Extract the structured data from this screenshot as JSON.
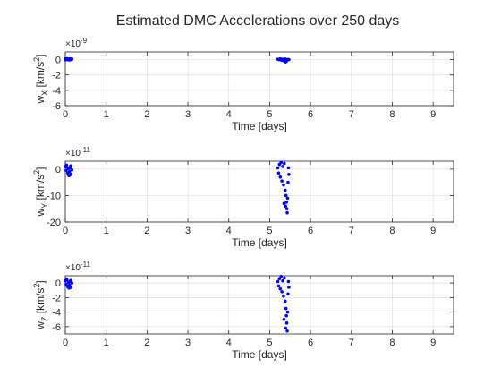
{
  "figure": {
    "title": "Estimated DMC Accelerations over 250 days"
  },
  "chart_data": [
    {
      "type": "scatter",
      "xlabel": "Time [days]",
      "ylabel_base": "w",
      "ylabel_sub": "X",
      "ylabel_unit": " [km/s",
      "ylabel_sup": "2",
      "ylabel_close": "]",
      "exponent": "×10",
      "exponent_power": "-9",
      "xlim": [
        0,
        9.5
      ],
      "ylim": [
        -6,
        1
      ],
      "xticks": [
        0,
        1,
        2,
        3,
        4,
        5,
        6,
        7,
        8,
        9
      ],
      "xtick_labels": [
        "0",
        "1",
        "2",
        "3",
        "4",
        "5",
        "6",
        "7",
        "8",
        "9"
      ],
      "yticks": [
        -6,
        -4,
        -2,
        0
      ],
      "ytick_labels": [
        "-6",
        "-4",
        "-2",
        "0"
      ],
      "grid": true,
      "color": "#0000ff",
      "points": [
        [
          0.0,
          0.1
        ],
        [
          0.02,
          0.05
        ],
        [
          0.04,
          0.12
        ],
        [
          0.06,
          0.0
        ],
        [
          0.08,
          0.08
        ],
        [
          0.1,
          -0.05
        ],
        [
          0.12,
          0.1
        ],
        [
          0.14,
          0.02
        ],
        [
          0.16,
          0.06
        ],
        [
          0.01,
          -0.02
        ],
        [
          5.2,
          0.05
        ],
        [
          5.23,
          0.0
        ],
        [
          5.26,
          0.1
        ],
        [
          5.29,
          -0.08
        ],
        [
          5.32,
          0.05
        ],
        [
          5.35,
          -0.15
        ],
        [
          5.38,
          0.08
        ],
        [
          5.41,
          -0.2
        ],
        [
          5.44,
          0.02
        ],
        [
          5.47,
          0.0
        ],
        [
          5.39,
          -0.3
        ],
        [
          5.42,
          -0.1
        ],
        [
          5.36,
          0.05
        ]
      ]
    },
    {
      "type": "scatter",
      "xlabel": "Time [days]",
      "ylabel_base": "w",
      "ylabel_sub": "Y",
      "ylabel_unit": " [km/s",
      "ylabel_sup": "2",
      "ylabel_close": "]",
      "exponent": "×10",
      "exponent_power": "-11",
      "xlim": [
        0,
        9.5
      ],
      "ylim": [
        -20,
        3
      ],
      "xticks": [
        0,
        1,
        2,
        3,
        4,
        5,
        6,
        7,
        8,
        9
      ],
      "xtick_labels": [
        "0",
        "1",
        "2",
        "3",
        "4",
        "5",
        "6",
        "7",
        "8",
        "9"
      ],
      "yticks": [
        -20,
        -10,
        0
      ],
      "ytick_labels": [
        "-20",
        "-10",
        "0"
      ],
      "grid": true,
      "color": "#0000ff",
      "points": [
        [
          0.0,
          1.0
        ],
        [
          0.02,
          -0.5
        ],
        [
          0.04,
          0.8
        ],
        [
          0.06,
          -1.5
        ],
        [
          0.08,
          0.2
        ],
        [
          0.1,
          -1.0
        ],
        [
          0.12,
          0.5
        ],
        [
          0.14,
          -2.0
        ],
        [
          0.16,
          -0.3
        ],
        [
          0.03,
          1.5
        ],
        [
          0.09,
          -2.5
        ],
        [
          0.13,
          1.2
        ],
        [
          5.2,
          0.5
        ],
        [
          5.22,
          -1.5
        ],
        [
          5.24,
          1.8
        ],
        [
          5.26,
          -3.0
        ],
        [
          5.28,
          2.5
        ],
        [
          5.3,
          -4.5
        ],
        [
          5.32,
          1.0
        ],
        [
          5.34,
          -6.0
        ],
        [
          5.36,
          2.2
        ],
        [
          5.38,
          -8.0
        ],
        [
          5.4,
          -10.0
        ],
        [
          5.41,
          -12.5
        ],
        [
          5.42,
          -15.0
        ],
        [
          5.43,
          -16.5
        ],
        [
          5.44,
          -11.0
        ],
        [
          5.45,
          -5.0
        ],
        [
          5.46,
          0.5
        ],
        [
          5.47,
          -2.0
        ],
        [
          5.35,
          -13.0
        ],
        [
          5.39,
          -14.0
        ]
      ]
    },
    {
      "type": "scatter",
      "xlabel": "Time [days]",
      "ylabel_base": "w",
      "ylabel_sub": "Z",
      "ylabel_unit": " [km/s",
      "ylabel_sup": "2",
      "ylabel_close": "]",
      "exponent": "×10",
      "exponent_power": "-11",
      "xlim": [
        0,
        9.5
      ],
      "ylim": [
        -7,
        1
      ],
      "xticks": [
        0,
        1,
        2,
        3,
        4,
        5,
        6,
        7,
        8,
        9
      ],
      "xtick_labels": [
        "0",
        "1",
        "2",
        "3",
        "4",
        "5",
        "6",
        "7",
        "8",
        "9"
      ],
      "yticks": [
        -6,
        -4,
        -2,
        0
      ],
      "ytick_labels": [
        "-6",
        "-4",
        "-2",
        "0"
      ],
      "grid": true,
      "color": "#0000ff",
      "points": [
        [
          0.0,
          0.3
        ],
        [
          0.02,
          -0.2
        ],
        [
          0.04,
          0.4
        ],
        [
          0.06,
          -0.5
        ],
        [
          0.08,
          0.1
        ],
        [
          0.1,
          -0.3
        ],
        [
          0.12,
          0.2
        ],
        [
          0.14,
          -0.6
        ],
        [
          0.16,
          0.0
        ],
        [
          0.03,
          0.5
        ],
        [
          0.09,
          -0.7
        ],
        [
          0.13,
          0.35
        ],
        [
          5.2,
          0.2
        ],
        [
          5.22,
          -0.4
        ],
        [
          5.24,
          0.6
        ],
        [
          5.26,
          -0.8
        ],
        [
          5.28,
          0.9
        ],
        [
          5.3,
          -1.2
        ],
        [
          5.32,
          0.3
        ],
        [
          5.34,
          -1.8
        ],
        [
          5.36,
          0.7
        ],
        [
          5.38,
          -2.5
        ],
        [
          5.4,
          -3.5
        ],
        [
          5.41,
          -4.5
        ],
        [
          5.42,
          -5.5
        ],
        [
          5.43,
          -6.6
        ],
        [
          5.44,
          -4.0
        ],
        [
          5.45,
          -1.5
        ],
        [
          5.46,
          0.2
        ],
        [
          5.47,
          -0.6
        ],
        [
          5.35,
          -5.0
        ],
        [
          5.39,
          -6.2
        ]
      ]
    }
  ]
}
